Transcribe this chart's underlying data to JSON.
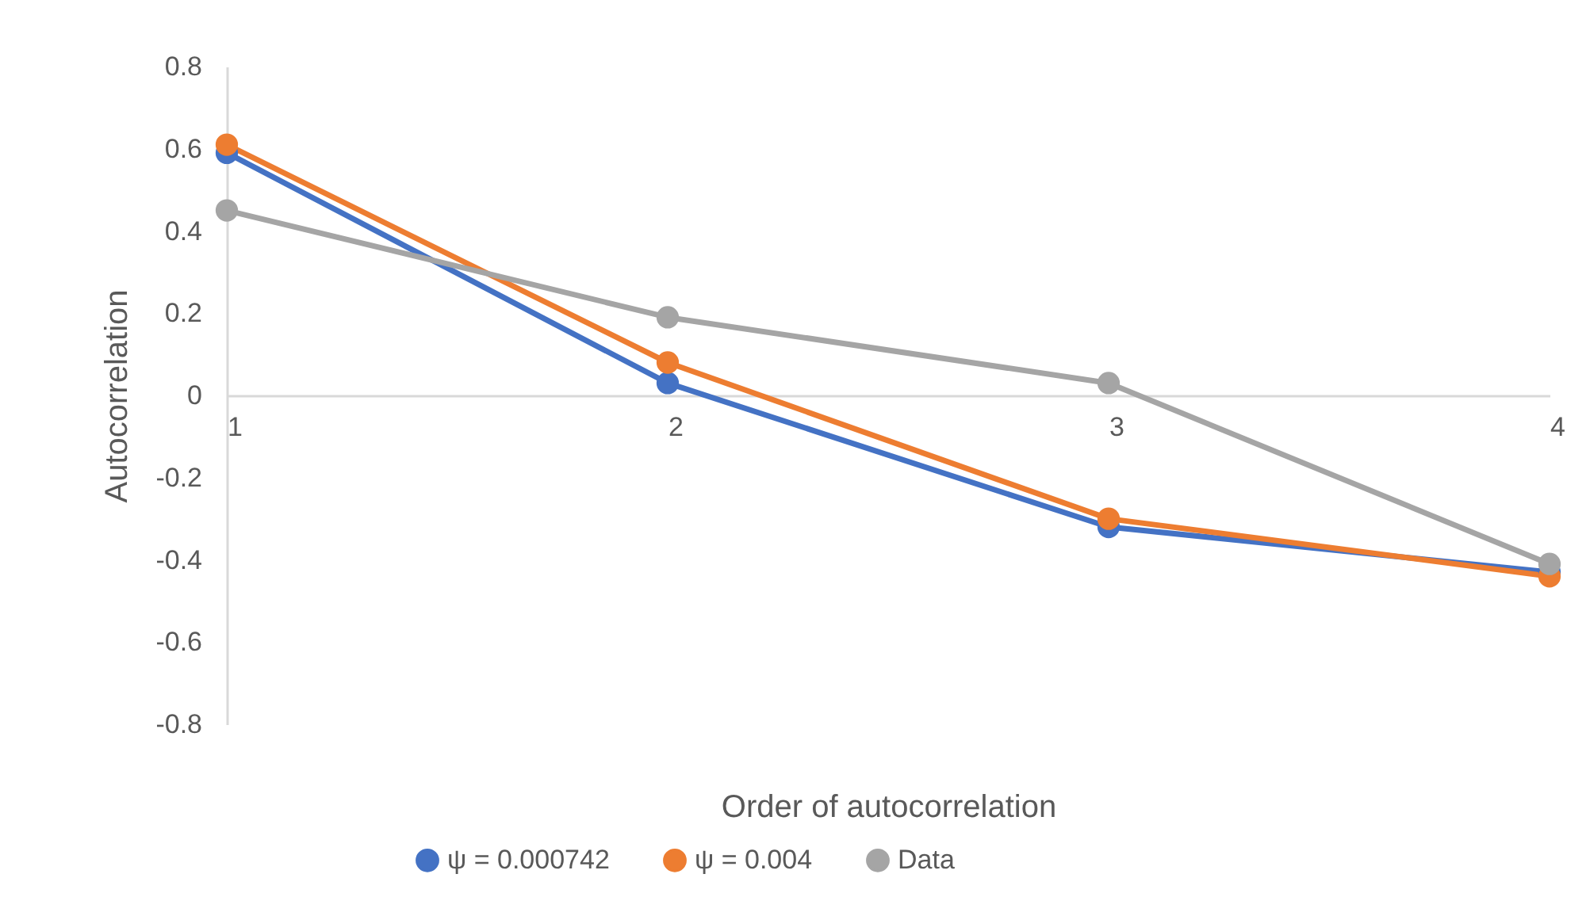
{
  "chart_data": {
    "type": "line",
    "xlabel": "Order of autocorrelation",
    "ylabel": "Autocorrelation",
    "categories": [
      "1",
      "2",
      "3",
      "4"
    ],
    "series": [
      {
        "name": "ψ = 0.000742",
        "color": "#4472c4",
        "values": [
          0.59,
          0.03,
          -0.32,
          -0.43
        ]
      },
      {
        "name": "ψ = 0.004",
        "color": "#ed7d31",
        "values": [
          0.61,
          0.08,
          -0.3,
          -0.44
        ]
      },
      {
        "name": "Data",
        "color": "#a5a5a5",
        "values": [
          0.45,
          0.19,
          0.03,
          -0.41
        ]
      }
    ],
    "ylim": [
      -0.8,
      0.8
    ],
    "yticks": [
      -0.8,
      -0.6,
      -0.4,
      -0.2,
      0,
      0.2,
      0.4,
      0.6,
      0.8
    ],
    "grid": false,
    "legend": "bottom",
    "marker": "circle",
    "line_style": "solid"
  }
}
